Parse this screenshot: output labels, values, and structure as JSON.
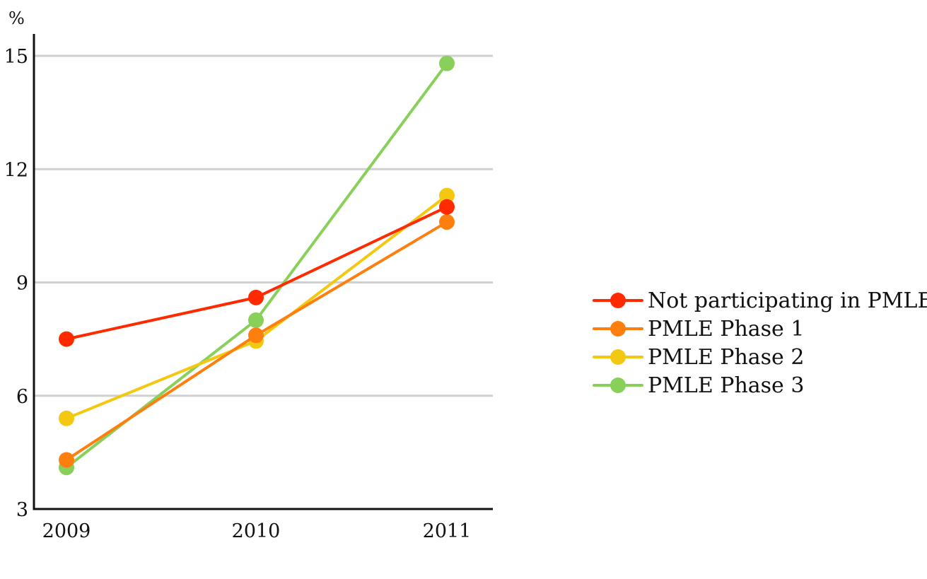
{
  "chart_data": {
    "type": "line",
    "title": "",
    "xlabel": "",
    "ylabel": "%",
    "x": [
      "2009",
      "2010",
      "2011"
    ],
    "ylim": [
      3,
      15
    ],
    "yticks": [
      "3",
      "6",
      "9",
      "12",
      "15"
    ],
    "grid": true,
    "legend_position": "right",
    "series": [
      {
        "name": "Not participating in PMLE",
        "color": "#ff2a00",
        "values": [
          7.5,
          8.6,
          11.0
        ]
      },
      {
        "name": "PMLE Phase 1",
        "color": "#ff7f0e",
        "values": [
          4.3,
          7.6,
          10.6
        ]
      },
      {
        "name": "PMLE Phase 2",
        "color": "#f2c811",
        "values": [
          5.4,
          7.45,
          11.3
        ]
      },
      {
        "name": "PMLE Phase 3",
        "color": "#88d05a",
        "values": [
          4.1,
          8.0,
          14.8
        ]
      }
    ],
    "draw_order": [
      3,
      2,
      1,
      0
    ]
  }
}
